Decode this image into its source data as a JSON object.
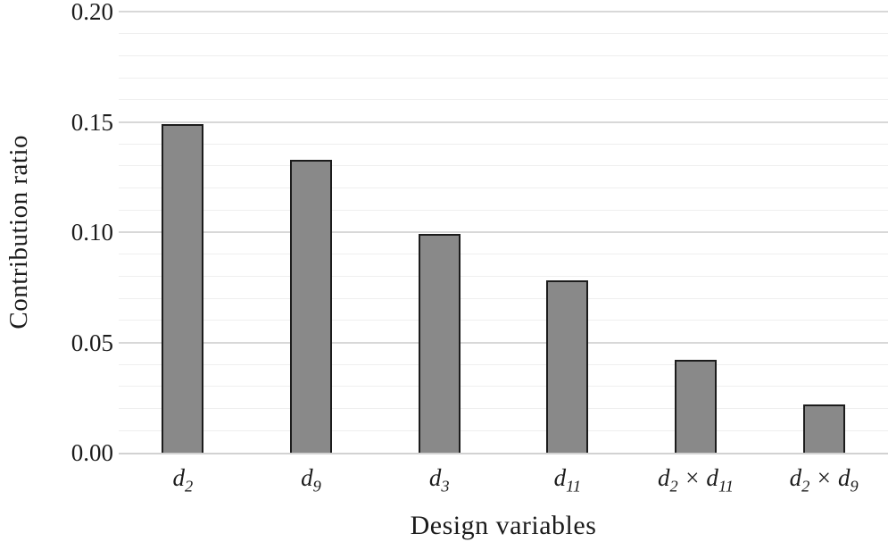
{
  "chart_data": {
    "type": "bar",
    "title": "",
    "xlabel": "Design variables",
    "ylabel": "Contribution ratio",
    "categories": [
      "d_2",
      "d_9",
      "d_3",
      "d_11",
      "d_2 × d_11",
      "d_2 × d_9"
    ],
    "values": [
      0.149,
      0.133,
      0.099,
      0.078,
      0.042,
      0.022
    ],
    "ylim": [
      0,
      0.2
    ],
    "y_major_ticks": [
      "0.00",
      "0.05",
      "0.10",
      "0.15",
      "0.20"
    ],
    "y_major_interval": 0.05,
    "y_minor_interval": 0.01,
    "grid": "horizontal-major-and-minor",
    "legend": "none",
    "bar_fill_color": "#898989",
    "bar_border_color": "#1c1c1c",
    "major_grid_color": "#d8d8d8",
    "minor_grid_color": "#efefef"
  }
}
